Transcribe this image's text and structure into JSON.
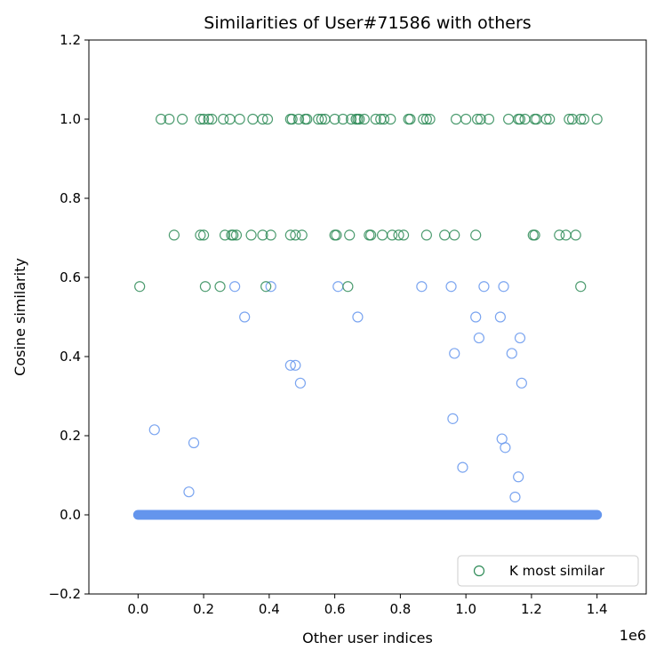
{
  "chart_data": {
    "type": "scatter",
    "title": "Similarities of User#71586 with others",
    "xlabel": "Other user indices",
    "ylabel": "Cosine similarity",
    "x_offset_label": "1e6",
    "xlim": [
      -0.15,
      1.55
    ],
    "ylim": [
      -0.2,
      1.2
    ],
    "x_ticks": [
      0.0,
      0.2,
      0.4,
      0.6,
      0.8,
      1.0,
      1.2,
      1.4
    ],
    "x_tick_labels": [
      "0.0",
      "0.2",
      "0.4",
      "0.6",
      "0.8",
      "1.0",
      "1.2",
      "1.4"
    ],
    "y_ticks": [
      -0.2,
      0.0,
      0.2,
      0.4,
      0.6,
      0.8,
      1.0,
      1.2
    ],
    "y_tick_labels": [
      "−0.2",
      "0.0",
      "0.2",
      "0.4",
      "0.6",
      "0.8",
      "1.0",
      "1.2"
    ],
    "grid": false,
    "legend_position": "bottom-right",
    "series": [
      {
        "key": "all",
        "color": "#6495ED",
        "marker": "open-circle",
        "baseline_band": {
          "x_range": [
            0.0,
            1.4
          ],
          "y": 0.0
        },
        "x": [
          0.05,
          0.17,
          0.155,
          0.295,
          0.325,
          0.405,
          0.465,
          0.48,
          0.495,
          0.61,
          0.67,
          0.865,
          0.955,
          0.965,
          0.96,
          0.99,
          1.03,
          1.04,
          1.055,
          1.105,
          1.11,
          1.115,
          1.12,
          1.14,
          1.15,
          1.16,
          1.165,
          1.17
        ],
        "y": [
          0.215,
          0.182,
          0.058,
          0.577,
          0.5,
          0.577,
          0.378,
          0.378,
          0.333,
          0.577,
          0.5,
          0.577,
          0.577,
          0.408,
          0.243,
          0.12,
          0.5,
          0.447,
          0.577,
          0.5,
          0.192,
          0.577,
          0.17,
          0.408,
          0.045,
          0.096,
          0.447,
          0.333
        ]
      },
      {
        "key": "topk",
        "name": "K most similar",
        "color": "#2E8B57",
        "marker": "open-circle",
        "x": [
          0.07,
          0.095,
          0.135,
          0.19,
          0.2,
          0.215,
          0.225,
          0.26,
          0.28,
          0.31,
          0.35,
          0.38,
          0.395,
          0.465,
          0.47,
          0.49,
          0.51,
          0.515,
          0.55,
          0.56,
          0.57,
          0.6,
          0.625,
          0.65,
          0.665,
          0.67,
          0.675,
          0.69,
          0.725,
          0.74,
          0.75,
          0.77,
          0.825,
          0.83,
          0.87,
          0.88,
          0.89,
          0.97,
          1.0,
          1.035,
          1.045,
          1.07,
          1.13,
          1.16,
          1.165,
          1.18,
          1.21,
          1.215,
          1.245,
          1.255,
          1.315,
          1.325,
          1.35,
          1.36,
          1.4,
          0.11,
          0.19,
          0.2,
          0.265,
          0.285,
          0.29,
          0.3,
          0.345,
          0.38,
          0.405,
          0.465,
          0.48,
          0.5,
          0.6,
          0.605,
          0.645,
          0.705,
          0.71,
          0.745,
          0.775,
          0.795,
          0.81,
          0.88,
          0.935,
          0.965,
          1.03,
          1.205,
          1.21,
          1.285,
          1.305,
          1.335,
          0.005,
          0.205,
          0.25,
          0.39,
          0.64,
          1.35
        ],
        "y": [
          1.0,
          1.0,
          1.0,
          1.0,
          1.0,
          1.0,
          1.0,
          1.0,
          1.0,
          1.0,
          1.0,
          1.0,
          1.0,
          1.0,
          1.0,
          1.0,
          1.0,
          1.0,
          1.0,
          1.0,
          1.0,
          1.0,
          1.0,
          1.0,
          1.0,
          1.0,
          1.0,
          1.0,
          1.0,
          1.0,
          1.0,
          1.0,
          1.0,
          1.0,
          1.0,
          1.0,
          1.0,
          1.0,
          1.0,
          1.0,
          1.0,
          1.0,
          1.0,
          1.0,
          1.0,
          1.0,
          1.0,
          1.0,
          1.0,
          1.0,
          1.0,
          1.0,
          1.0,
          1.0,
          1.0,
          0.707,
          0.707,
          0.707,
          0.707,
          0.707,
          0.707,
          0.707,
          0.707,
          0.707,
          0.707,
          0.707,
          0.707,
          0.707,
          0.707,
          0.707,
          0.707,
          0.707,
          0.707,
          0.707,
          0.707,
          0.707,
          0.707,
          0.707,
          0.707,
          0.707,
          0.707,
          0.707,
          0.707,
          0.707,
          0.707,
          0.707,
          0.577,
          0.577,
          0.577,
          0.577,
          0.577,
          0.577
        ]
      }
    ],
    "legend": [
      {
        "label": "K most similar",
        "color": "#2E8B57",
        "marker": "open-circle"
      }
    ]
  }
}
